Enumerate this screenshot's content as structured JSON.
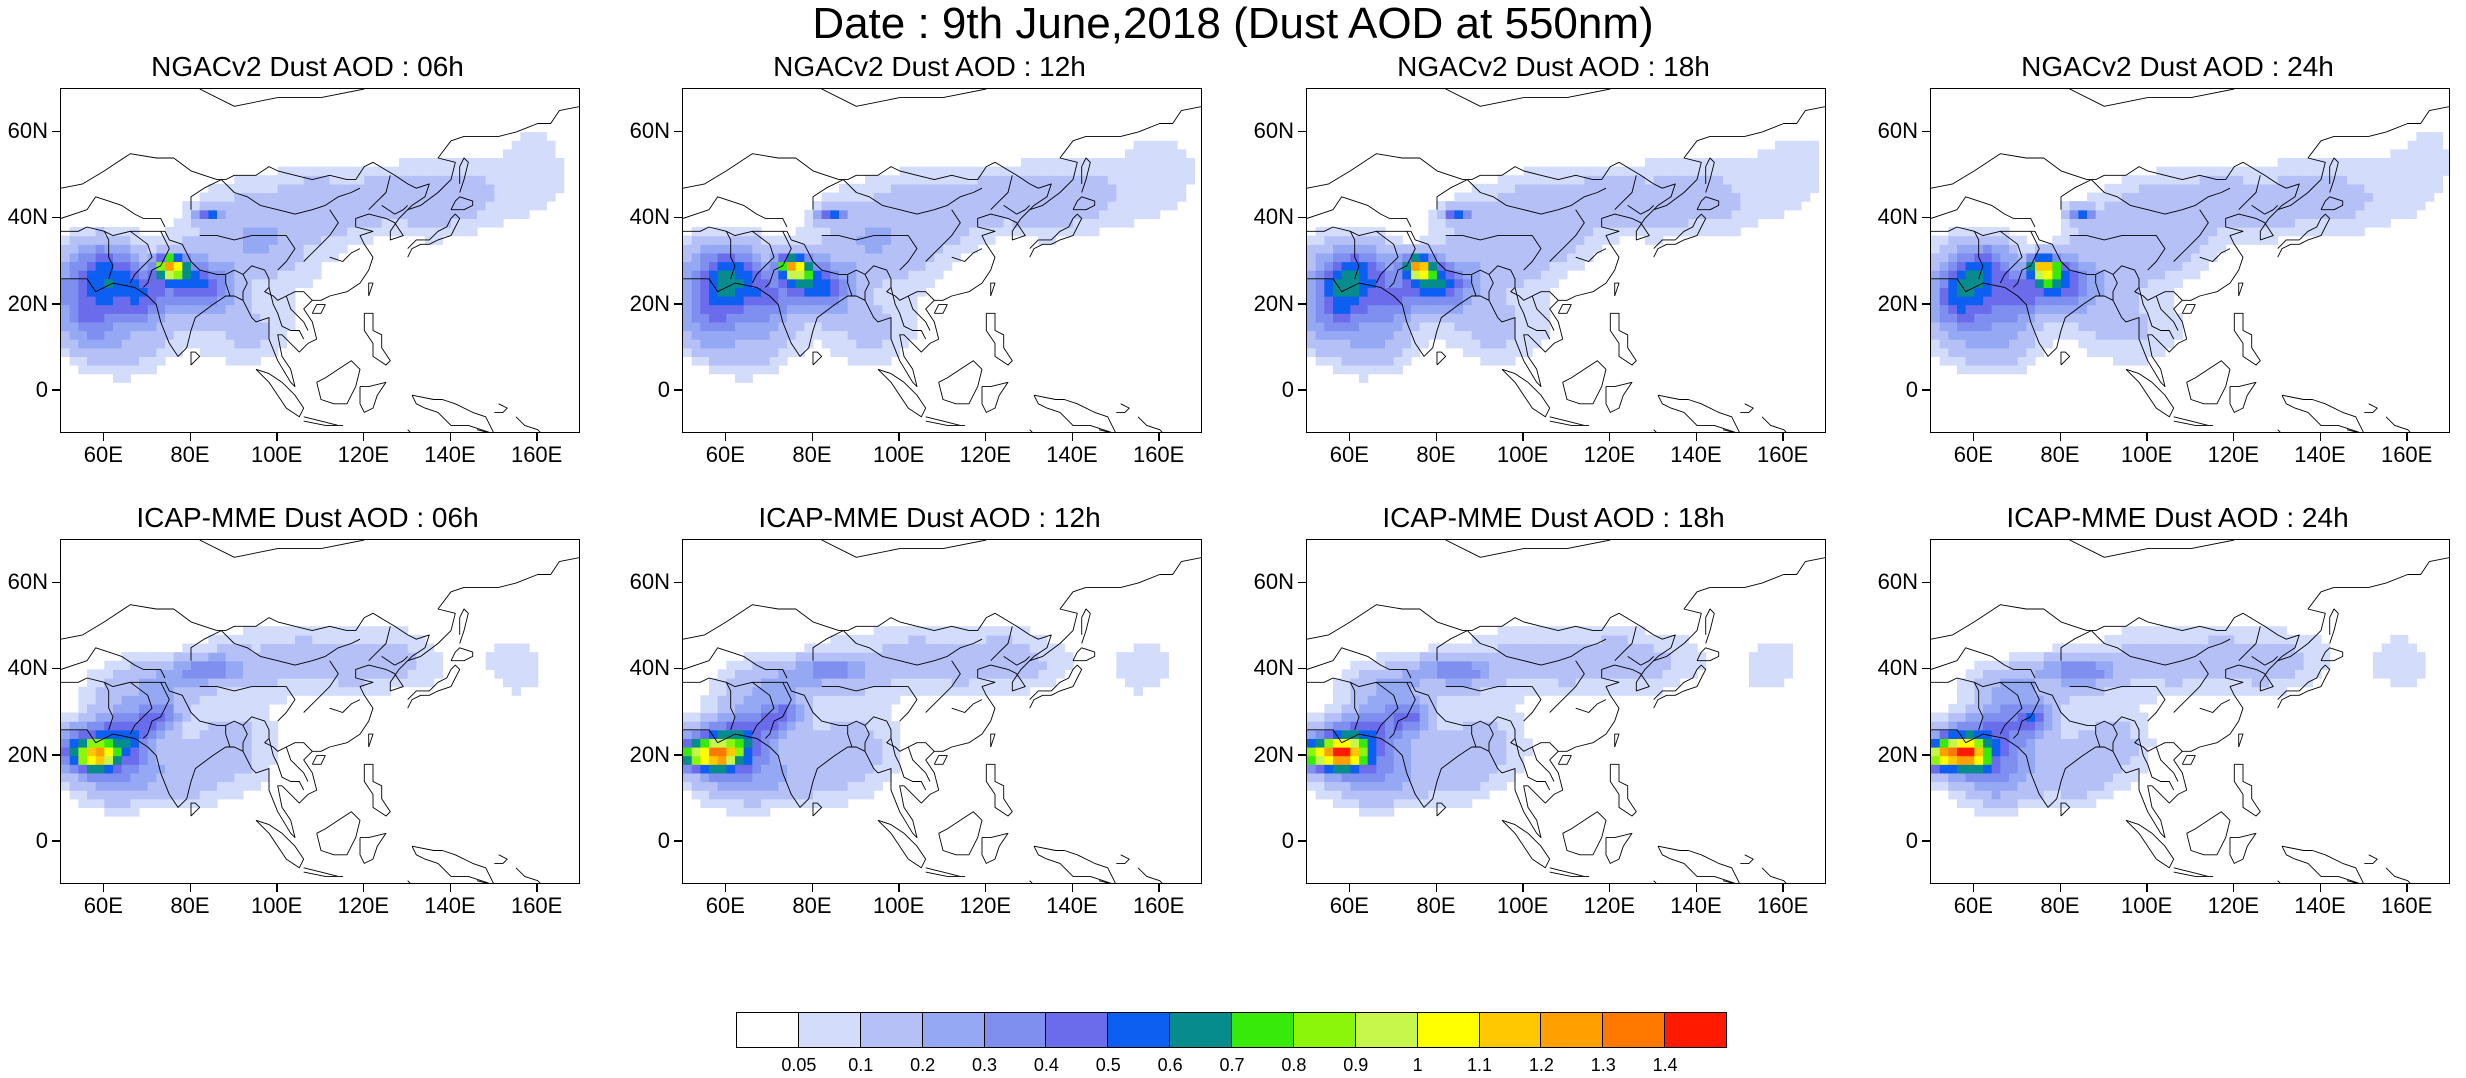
{
  "title": "Date : 9th June,2018 (Dust AOD at 550nm)",
  "lat_labels": [
    "60N",
    "40N",
    "20N",
    "0"
  ],
  "lon_labels": [
    "60E",
    "80E",
    "100E",
    "120E",
    "140E",
    "160E"
  ],
  "panels": [
    {
      "title": "NGACv2 Dust AOD : 06h",
      "model": "NGACv2",
      "hour": "06h"
    },
    {
      "title": "NGACv2 Dust AOD : 12h",
      "model": "NGACv2",
      "hour": "12h"
    },
    {
      "title": "NGACv2 Dust AOD : 18h",
      "model": "NGACv2",
      "hour": "18h"
    },
    {
      "title": "NGACv2 Dust AOD : 24h",
      "model": "NGACv2",
      "hour": "24h"
    },
    {
      "title": "ICAP-MME Dust AOD : 06h",
      "model": "ICAP-MME",
      "hour": "06h"
    },
    {
      "title": "ICAP-MME Dust AOD : 12h",
      "model": "ICAP-MME",
      "hour": "12h"
    },
    {
      "title": "ICAP-MME Dust AOD : 18h",
      "model": "ICAP-MME",
      "hour": "18h"
    },
    {
      "title": "ICAP-MME Dust AOD : 24h",
      "model": "ICAP-MME",
      "hour": "24h"
    }
  ],
  "colorbar": {
    "labels": [
      "0.05",
      "0.1",
      "0.2",
      "0.3",
      "0.4",
      "0.5",
      "0.6",
      "0.7",
      "0.8",
      "0.9",
      "1",
      "1.1",
      "1.2",
      "1.3",
      "1.4"
    ],
    "colors": [
      "#ffffff",
      "#d4dcfb",
      "#b4c0f6",
      "#94a8f4",
      "#7f8ff0",
      "#6a6cec",
      "#0c5ff0",
      "#078c8e",
      "#38ea0a",
      "#8bf50a",
      "#c7f74a",
      "#ffff00",
      "#ffc800",
      "#ffa000",
      "#ff7800",
      "#ff1a00"
    ]
  }
}
